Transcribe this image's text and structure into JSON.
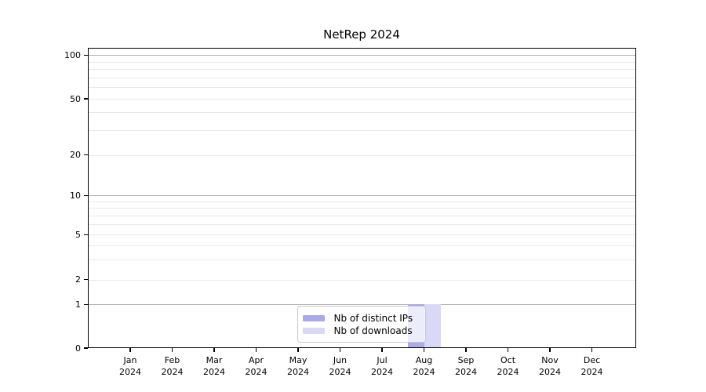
{
  "title": "NetRep 2024",
  "chart_data": {
    "type": "bar",
    "title": "NetRep 2024",
    "x_axis": {
      "months": [
        "Jan",
        "Feb",
        "Mar",
        "Apr",
        "May",
        "Jun",
        "Jul",
        "Aug",
        "Sep",
        "Oct",
        "Nov",
        "Dec"
      ],
      "year": "2024"
    },
    "y_axis": {
      "scale": "log-like (0,1,2,5,10,20,50,100)",
      "tick_values": [
        0,
        1,
        2,
        5,
        10,
        20,
        50,
        100
      ],
      "minor_grid_values": [
        3,
        4,
        6,
        7,
        8,
        9,
        30,
        40,
        60,
        70,
        80,
        90
      ],
      "dark_grid_values": [
        1,
        10,
        100
      ],
      "range": [
        0,
        100
      ],
      "grid": "on"
    },
    "series": [
      {
        "name": "Nb of distinct IPs",
        "color": "#a9a9ec",
        "values": [
          null,
          null,
          null,
          null,
          null,
          null,
          null,
          1,
          null,
          null,
          null,
          null
        ]
      },
      {
        "name": "Nb of downloads",
        "color": "#d9d9f7",
        "values": [
          null,
          null,
          null,
          null,
          null,
          null,
          null,
          1,
          null,
          null,
          null,
          null
        ]
      }
    ],
    "legend_position": "bottom-center-inside"
  }
}
